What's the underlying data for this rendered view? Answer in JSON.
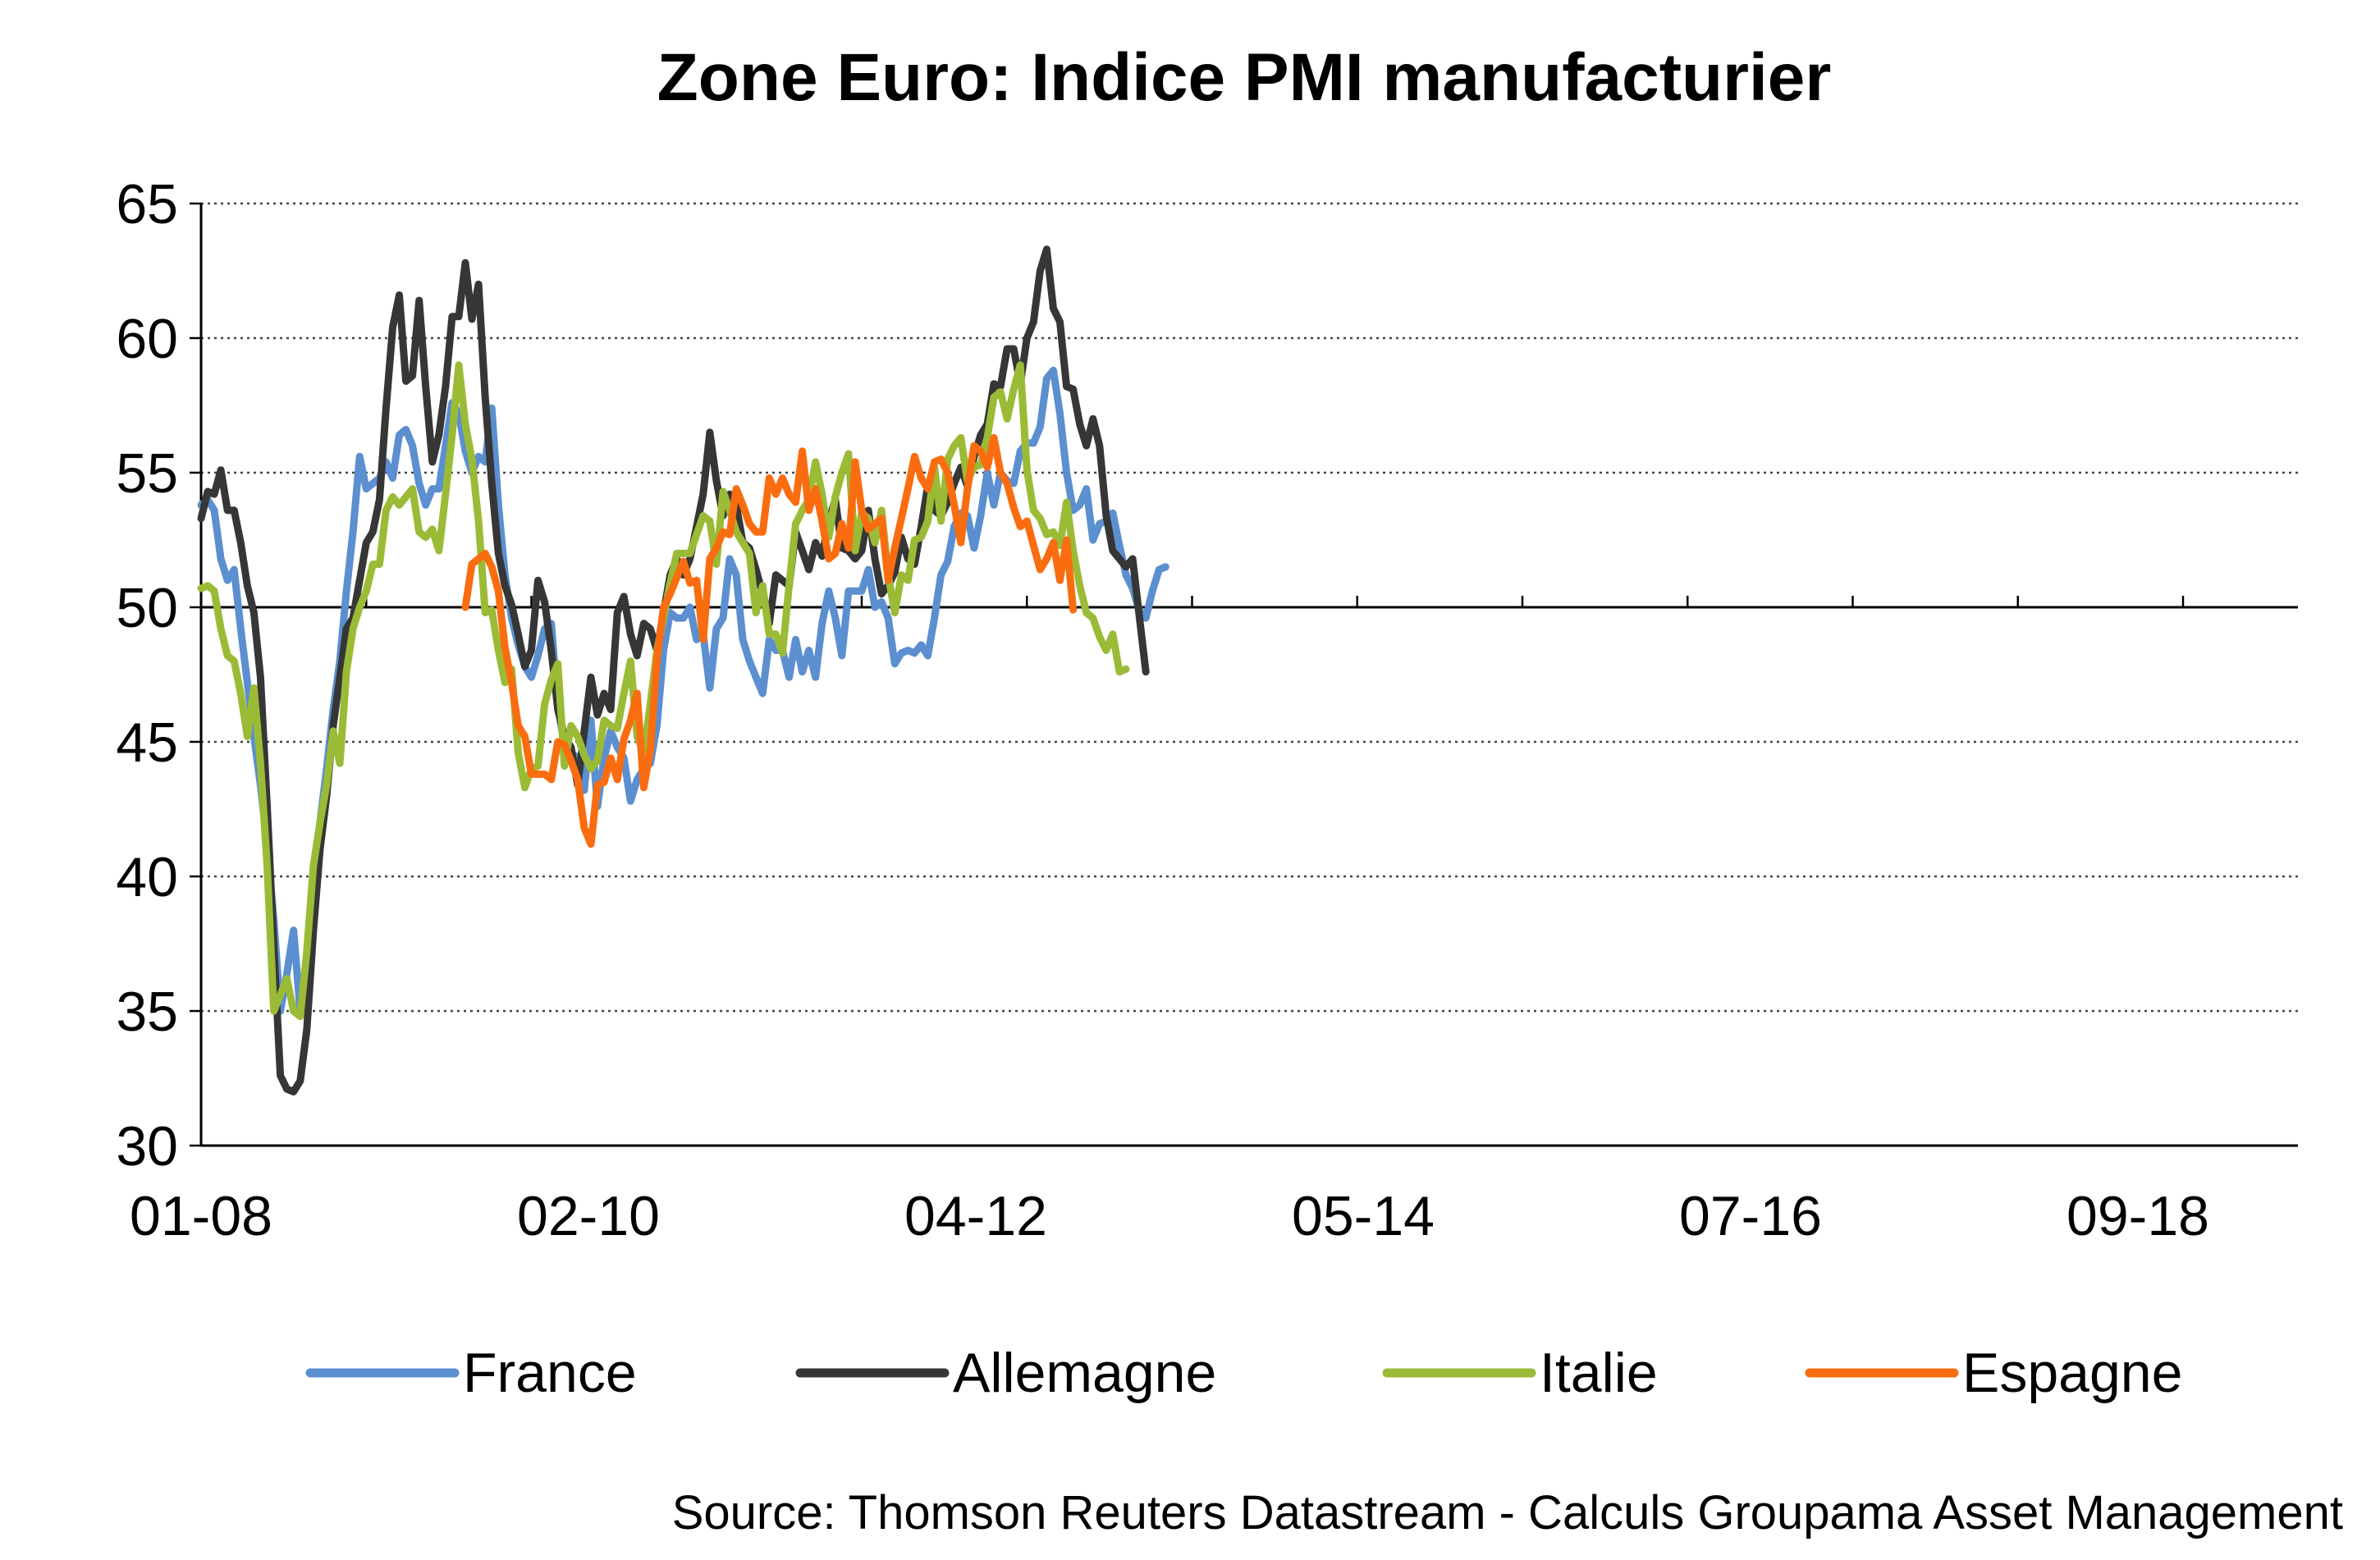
{
  "chart_data": {
    "type": "line",
    "title": "Zone Euro: Indice PMI manufacturier",
    "source": "Source: Thomson Reuters Datastream - Calculs Groupama Asset Management",
    "xlabel": "",
    "ylabel": "",
    "ylim": [
      30,
      65
    ],
    "yticks": [
      "30",
      "35",
      "40",
      "45",
      "50",
      "55",
      "60",
      "65"
    ],
    "xticks": [
      "01-08",
      "02-10",
      "04-12",
      "05-14",
      "07-16",
      "09-18"
    ],
    "x_start": "01-08",
    "x_step": "1 month",
    "grid": "horizontal dotted",
    "legend_position": "bottom",
    "series": [
      {
        "name": "France",
        "color": "#5b8fd0",
        "start_index": 0,
        "values": [
          53.8,
          54.0,
          53.6,
          51.8,
          51.0,
          51.4,
          49.2,
          47.2,
          45.2,
          43.4,
          41.2,
          38.4,
          35.0,
          36.4,
          38.0,
          35.0,
          35.8,
          39.2,
          42.0,
          44.0,
          46.2,
          48.0,
          50.6,
          52.8,
          55.6,
          54.4,
          54.6,
          54.8,
          55.4,
          54.8,
          56.4,
          56.6,
          56.0,
          54.6,
          53.8,
          54.4,
          54.4,
          56.0,
          57.6,
          57.2,
          55.8,
          55.0,
          55.6,
          55.4,
          57.4,
          53.8,
          51.2,
          49.6,
          48.6,
          47.8,
          47.4,
          48.2,
          49.2,
          49.4,
          46.4,
          44.8,
          44.6,
          44.4,
          43.2,
          45.8,
          42.6,
          44.4,
          45.4,
          44.8,
          44.4,
          42.8,
          43.6,
          44.0,
          44.2,
          45.6,
          48.4,
          49.8,
          49.6,
          49.6,
          50.0,
          48.8,
          49.0,
          47.0,
          49.2,
          49.6,
          51.8,
          51.2,
          48.8,
          48.0,
          47.4,
          46.8,
          48.8,
          48.4,
          48.4,
          47.4,
          48.8,
          47.6,
          48.4,
          47.4,
          49.4,
          50.6,
          49.6,
          48.2,
          50.6,
          50.6,
          50.6,
          51.4,
          50.0,
          50.2,
          49.6,
          47.9,
          48.3,
          48.4,
          48.3,
          48.6,
          48.2,
          49.6,
          51.2,
          51.7,
          53.0,
          53.5,
          53.4,
          52.2,
          53.4,
          55.0,
          53.8,
          55.0,
          54.7,
          54.6,
          55.8,
          56.1,
          56.1,
          56.7,
          58.5,
          58.8,
          57.2,
          55.0,
          53.6,
          53.8,
          54.4,
          52.5,
          53.1,
          53.2,
          53.5,
          52.3,
          51.2,
          50.7,
          49.9,
          49.6,
          50.6,
          51.4,
          51.5
        ]
      },
      {
        "name": "Allemagne",
        "color": "#363636",
        "start_index": 0,
        "values": [
          53.3,
          54.3,
          54.2,
          55.1,
          53.6,
          53.6,
          52.4,
          50.8,
          49.8,
          47.4,
          42.6,
          37.4,
          32.6,
          32.1,
          32.0,
          32.4,
          34.3,
          38.0,
          41.0,
          43.0,
          45.6,
          47.4,
          49.2,
          49.6,
          51.0,
          52.4,
          52.8,
          54.0,
          57.4,
          60.4,
          61.6,
          58.4,
          58.6,
          61.4,
          58.2,
          55.4,
          56.4,
          58.2,
          60.8,
          60.8,
          62.8,
          60.7,
          62.0,
          57.8,
          54.6,
          52.0,
          50.8,
          50.1,
          49.0,
          47.8,
          48.4,
          51.0,
          50.2,
          48.4,
          46.2,
          45.2,
          44.8,
          43.4,
          45.4,
          47.4,
          46.0,
          46.8,
          46.2,
          49.8,
          50.4,
          49.0,
          48.2,
          49.4,
          49.2,
          48.4,
          49.8,
          51.2,
          51.8,
          51.2,
          51.8,
          53.0,
          54.2,
          56.5,
          54.7,
          53.4,
          54.2,
          53.8,
          52.4,
          52.2,
          51.4,
          50.5,
          49.4,
          51.2,
          51.0,
          50.8,
          52.8,
          52.1,
          51.4,
          52.4,
          51.9,
          53.2,
          54.0,
          52.2,
          52.1,
          51.8,
          52.1,
          53.6,
          51.8,
          50.5,
          50.8,
          51.3,
          52.6,
          51.8,
          51.6,
          53.0,
          54.5,
          53.6,
          53.4,
          53.9,
          54.6,
          55.2,
          54.5,
          55.6,
          56.4,
          56.8,
          58.3,
          58.2,
          59.6,
          59.6,
          58.3,
          60.0,
          60.6,
          62.5,
          63.3,
          61.1,
          60.6,
          58.2,
          58.1,
          56.8,
          56.0,
          57.0,
          56.0,
          53.4,
          52.1,
          51.8,
          51.5,
          51.8,
          49.7,
          47.6
        ]
      },
      {
        "name": "Italie",
        "color": "#9bbb37",
        "start_index": 0,
        "values": [
          50.7,
          50.8,
          50.6,
          49.2,
          48.2,
          48.0,
          46.8,
          45.2,
          47.0,
          44.2,
          40.4,
          35.0,
          35.6,
          36.2,
          35.0,
          34.8,
          37.2,
          40.4,
          42.0,
          43.4,
          45.4,
          44.2,
          47.6,
          49.2,
          50.0,
          50.6,
          51.6,
          51.6,
          53.6,
          54.1,
          53.8,
          54.1,
          54.4,
          52.8,
          52.6,
          52.9,
          52.1,
          54.2,
          56.4,
          59.0,
          56.8,
          55.5,
          53.2,
          49.8,
          49.9,
          48.4,
          47.2,
          47.7,
          44.6,
          43.3,
          44.0,
          44.1,
          46.4,
          47.3,
          47.9,
          44.1,
          45.6,
          45.2,
          44.5,
          44.0,
          44.3,
          45.8,
          45.6,
          45.5,
          46.8,
          48.0,
          45.2,
          44.6,
          46.4,
          48.4,
          49.6,
          50.9,
          52.0,
          52.0,
          52.0,
          52.7,
          53.4,
          53.2,
          51.6,
          54.3,
          53.6,
          52.8,
          52.4,
          52.0,
          49.8,
          50.8,
          49.0,
          49.0,
          48.3,
          50.8,
          53.1,
          53.6,
          54.0,
          55.4,
          54.2,
          52.6,
          54.1,
          55.0,
          55.7,
          52.1,
          53.5,
          53.3,
          52.4,
          53.6,
          51.2,
          49.8,
          51.2,
          51.0,
          52.5,
          52.6,
          53.2,
          55.2,
          53.2,
          55.5,
          56.0,
          56.3,
          54.7,
          55.2,
          55.3,
          56.3,
          57.8,
          58.0,
          57.0,
          58.1,
          59.0,
          55.1,
          53.6,
          53.3,
          52.7,
          52.8,
          52.3,
          53.9,
          52.1,
          50.8,
          49.8,
          49.6,
          48.9,
          48.4,
          49.0,
          47.6,
          47.7
        ]
      },
      {
        "name": "Espagne",
        "color": "#f96d10",
        "start_index": 40,
        "values": [
          50.0,
          51.6,
          51.8,
          52.0,
          51.5,
          50.6,
          48.5,
          47.2,
          45.6,
          45.2,
          43.8,
          43.8,
          43.8,
          43.6,
          45.0,
          44.9,
          44.3,
          43.6,
          41.8,
          41.2,
          43.4,
          43.5,
          44.4,
          43.6,
          45.1,
          45.8,
          46.8,
          43.3,
          44.7,
          48.1,
          50.0,
          50.5,
          51.1,
          51.7,
          50.9,
          51.0,
          48.8,
          51.8,
          52.2,
          52.8,
          52.7,
          54.4,
          53.8,
          53.1,
          52.8,
          52.8,
          54.8,
          54.2,
          54.8,
          54.2,
          53.9,
          55.8,
          53.6,
          54.4,
          53.2,
          51.8,
          52.0,
          53.1,
          52.2,
          55.4,
          53.6,
          52.9,
          53.1,
          53.3,
          51.0,
          52.2,
          53.3,
          54.4,
          55.6,
          54.8,
          54.4,
          55.4,
          55.5,
          55.0,
          53.8,
          52.4,
          54.4,
          56.0,
          55.8,
          55.2,
          56.3,
          55.0,
          54.6,
          53.7,
          53.0,
          53.2,
          52.3,
          51.4,
          51.8,
          52.4,
          51.0,
          52.5,
          49.9
        ]
      }
    ]
  }
}
